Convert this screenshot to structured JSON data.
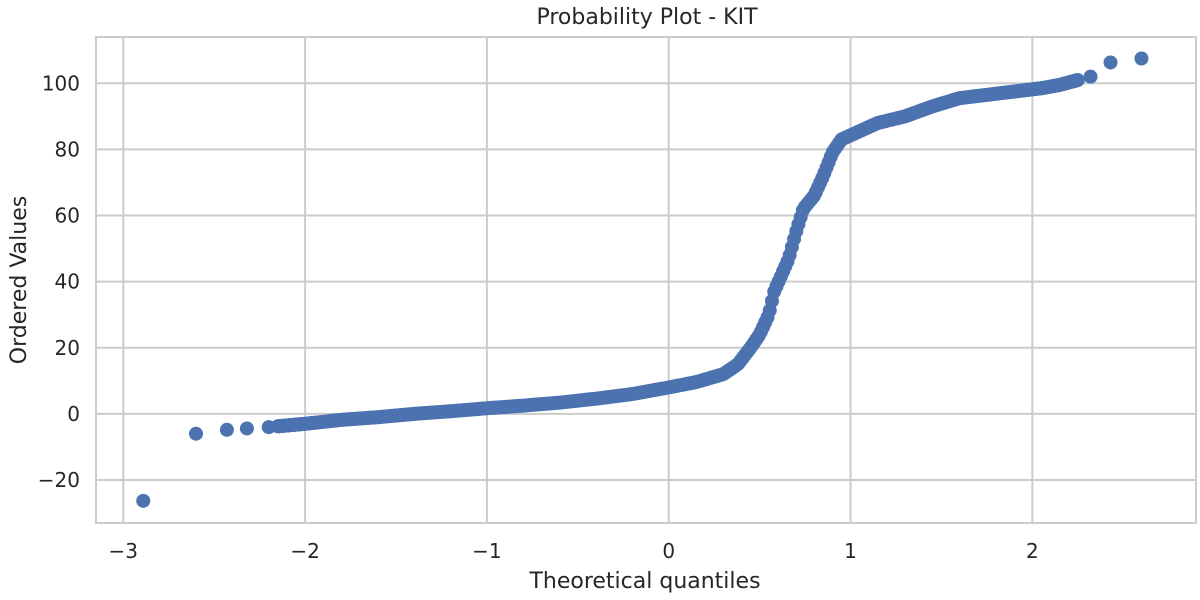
{
  "chart_data": {
    "type": "scatter",
    "title": "Probability Plot - KIT",
    "xlabel": "Theoretical quantiles",
    "ylabel": "Ordered Values",
    "xlim": [
      -3.15,
      2.9
    ],
    "ylim": [
      -33,
      114
    ],
    "xticks": [
      -3,
      -2,
      -1,
      0,
      1,
      2
    ],
    "xtick_labels": [
      "−3",
      "−2",
      "−1",
      "0",
      "1",
      "2"
    ],
    "yticks": [
      -20,
      0,
      20,
      40,
      60,
      80,
      100
    ],
    "ytick_labels": [
      "−20",
      "0",
      "20",
      "40",
      "60",
      "80",
      "100"
    ],
    "grid": true,
    "marker_color": "#4c72b0",
    "quantile_curve": [
      [
        -2.89,
        -26.3
      ],
      [
        -2.6,
        -6.0
      ],
      [
        -2.43,
        -4.8
      ],
      [
        -2.32,
        -4.4
      ],
      [
        -2.2,
        -4.0
      ],
      [
        -2.1,
        -3.5
      ],
      [
        -2.0,
        -3.0
      ],
      [
        -1.8,
        -1.8
      ],
      [
        -1.6,
        -1.0
      ],
      [
        -1.4,
        0.0
      ],
      [
        -1.2,
        0.8
      ],
      [
        -1.0,
        1.7
      ],
      [
        -0.8,
        2.5
      ],
      [
        -0.6,
        3.4
      ],
      [
        -0.4,
        4.6
      ],
      [
        -0.2,
        6.0
      ],
      [
        0.0,
        8.0
      ],
      [
        0.15,
        9.6
      ],
      [
        0.3,
        12.0
      ],
      [
        0.38,
        15.0
      ],
      [
        0.45,
        20.0
      ],
      [
        0.5,
        24.0
      ],
      [
        0.55,
        30.0
      ],
      [
        0.58,
        37.0
      ],
      [
        0.62,
        42.0
      ],
      [
        0.66,
        47.0
      ],
      [
        0.7,
        55.0
      ],
      [
        0.74,
        62.0
      ],
      [
        0.8,
        66.0
      ],
      [
        0.85,
        72.0
      ],
      [
        0.9,
        79.0
      ],
      [
        0.95,
        83.0
      ],
      [
        1.05,
        85.5
      ],
      [
        1.15,
        88.0
      ],
      [
        1.3,
        90.0
      ],
      [
        1.45,
        93.0
      ],
      [
        1.6,
        95.5
      ],
      [
        1.75,
        96.5
      ],
      [
        1.9,
        97.5
      ],
      [
        2.05,
        98.5
      ],
      [
        2.15,
        99.5
      ],
      [
        2.32,
        102.0
      ],
      [
        2.43,
        106.3
      ],
      [
        2.6,
        107.5
      ]
    ],
    "n_points": 480
  }
}
